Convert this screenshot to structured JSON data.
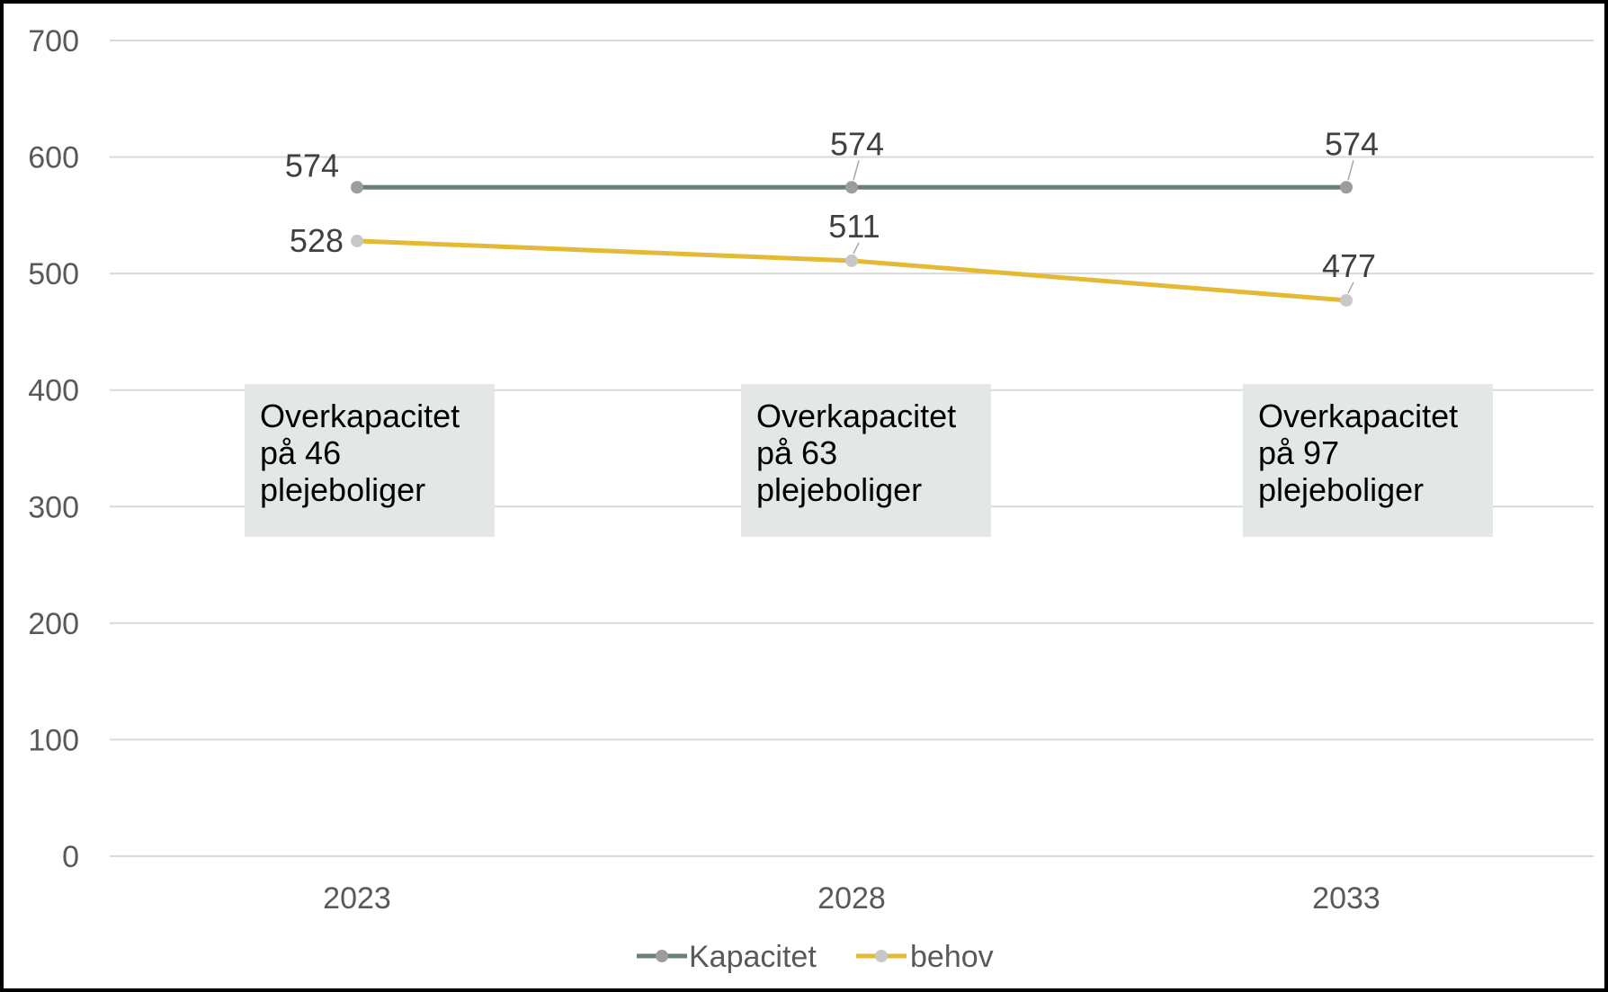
{
  "chart_data": {
    "type": "line",
    "categories": [
      "2023",
      "2028",
      "2033"
    ],
    "ylim": [
      0,
      700
    ],
    "yticks": [
      0,
      100,
      200,
      300,
      400,
      500,
      600,
      700
    ],
    "grid": true,
    "legend_position": "bottom",
    "series": [
      {
        "name": "Kapacitet",
        "values": [
          574,
          574,
          574
        ],
        "color": "#6a7f78",
        "marker_color": "#9c9c9c",
        "data_labels": [
          "574",
          "574",
          "574"
        ]
      },
      {
        "name": "behov",
        "values": [
          528,
          511,
          477
        ],
        "color": "#e3b935",
        "marker_color": "#c8c8c8",
        "data_labels": [
          "528",
          "511",
          "477"
        ]
      }
    ],
    "annotations": [
      {
        "lines": [
          "Overkapacitet",
          "på 46",
          "plejeboliger"
        ]
      },
      {
        "lines": [
          "Overkapacitet",
          "på 63",
          "plejeboliger"
        ]
      },
      {
        "lines": [
          "Overkapacitet",
          "på 97",
          "plejeboliger"
        ]
      }
    ]
  }
}
